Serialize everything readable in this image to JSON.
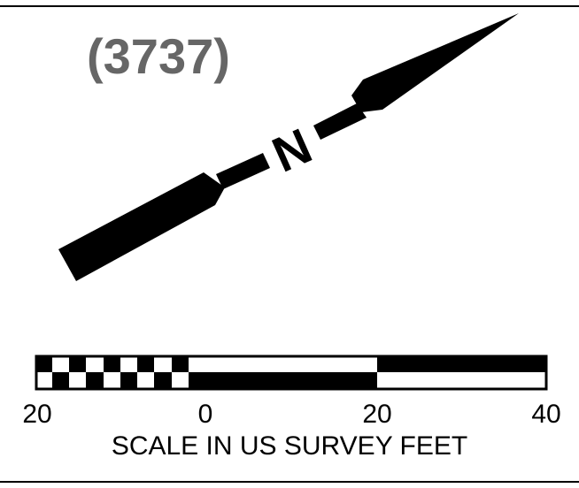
{
  "sheet_number": "(3737)",
  "north_arrow": {
    "letter": "N",
    "icon": "north-arrow-icon",
    "color": "#000000"
  },
  "scale": {
    "tick_labels": [
      "20",
      "0",
      "20",
      "40"
    ],
    "caption": "SCALE IN US SURVEY FEET",
    "units": "US survey feet"
  },
  "colors": {
    "ink": "#000000",
    "sheet_number": "#666666",
    "paper": "#ffffff"
  }
}
